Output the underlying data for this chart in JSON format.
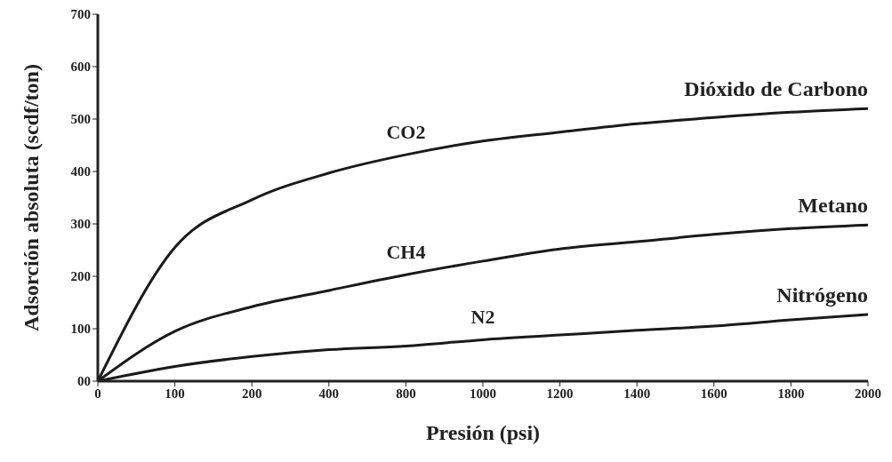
{
  "chart_data": {
    "type": "line",
    "xlabel": "Presión (psi)",
    "ylabel": "Adsorción absoluta (scdf/ton)",
    "categories": [
      "0",
      "100",
      "200",
      "400",
      "800",
      "1000",
      "1200",
      "1400",
      "1600",
      "1800",
      "2000"
    ],
    "series": [
      {
        "name": "Dióxido de Carbono",
        "color": "#1a1a1a",
        "values": [
          0,
          255,
          346,
          397,
          432,
          458,
          475,
          491,
          503,
          513,
          520
        ]
      },
      {
        "name": "Metano",
        "color": "#1a1a1a",
        "values": [
          0,
          95,
          142,
          173,
          203,
          229,
          252,
          266,
          280,
          291,
          298
        ]
      },
      {
        "name": "Nitrógeno",
        "color": "#1a1a1a",
        "values": [
          0,
          28,
          47,
          60,
          67,
          79,
          88,
          97,
          105,
          117,
          127
        ]
      }
    ],
    "annotations": [
      "CO2",
      "CH4",
      "N2"
    ],
    "ylim": [
      0,
      700
    ],
    "yticks": [
      {
        "value": 0,
        "label": "00"
      },
      100,
      200,
      300,
      400,
      500,
      600,
      700
    ],
    "grid": false,
    "legend": false,
    "marker": "none",
    "line_style": "solid"
  }
}
